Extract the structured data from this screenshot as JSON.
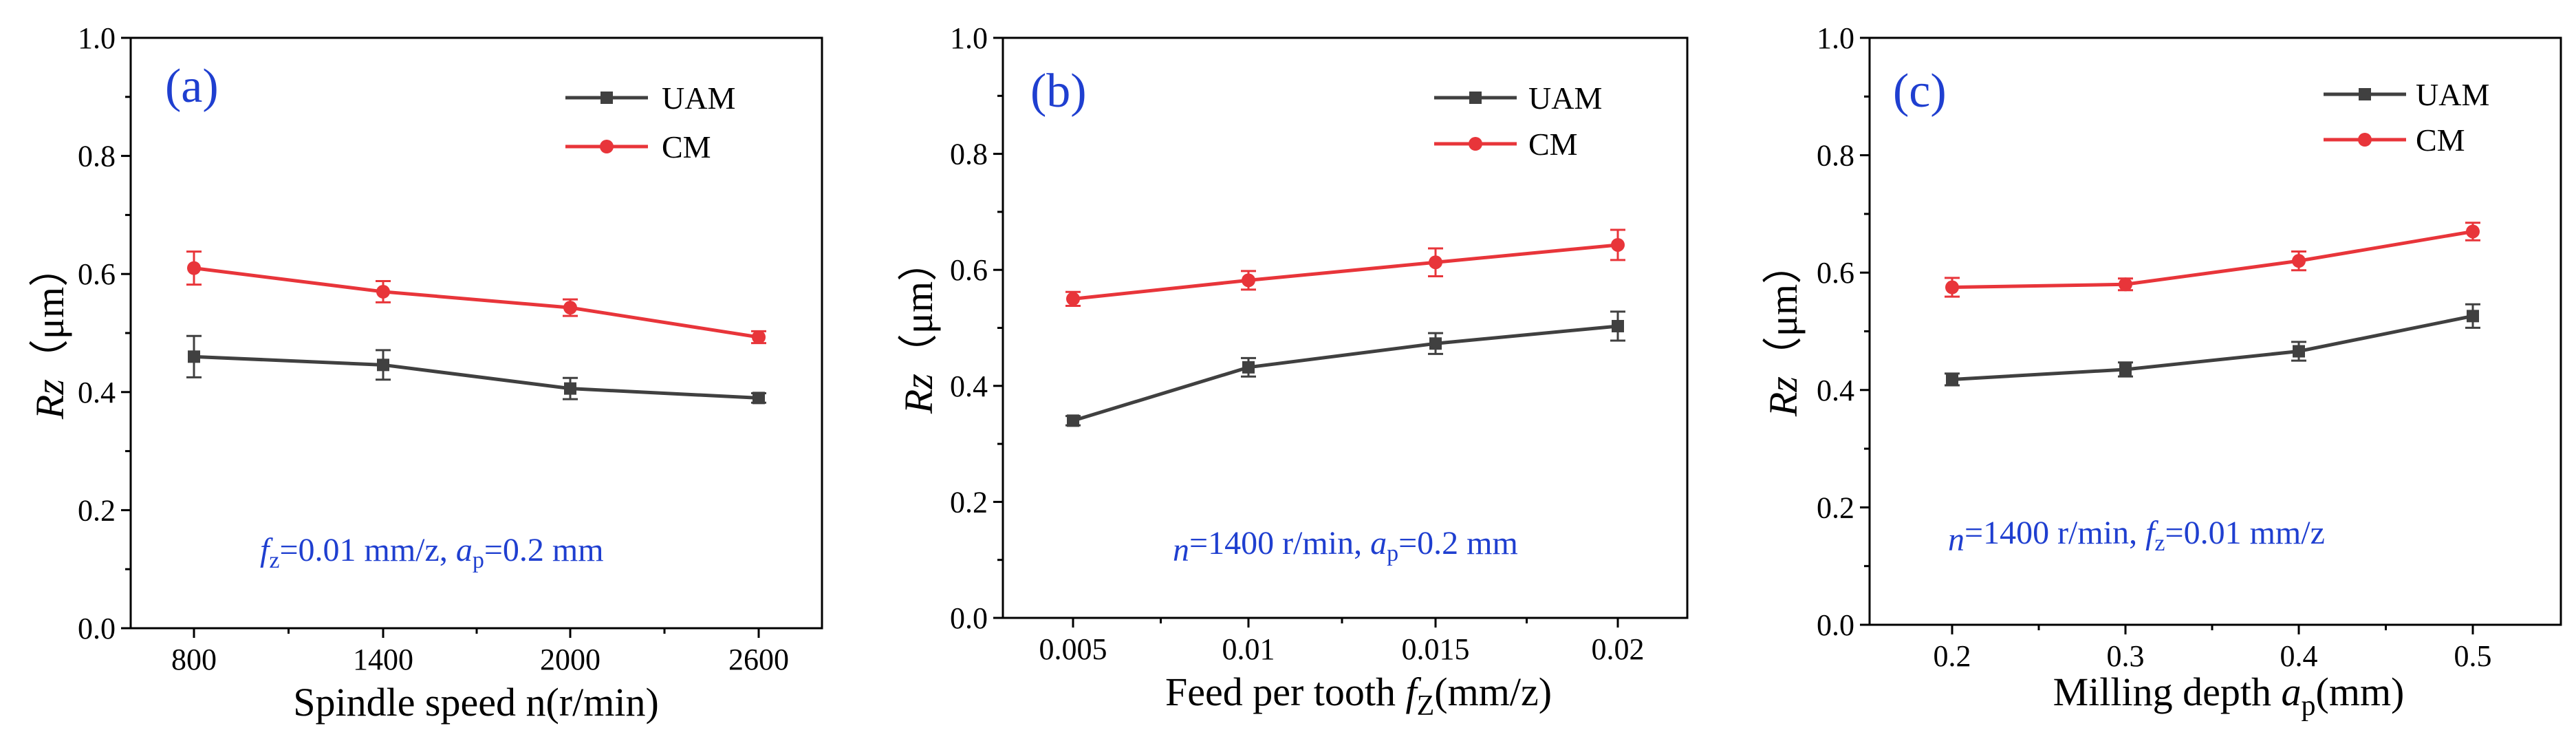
{
  "colors": {
    "uam": "#404040",
    "cm": "#e8353a",
    "annotation": "#1f3fd0"
  },
  "chart_data": [
    {
      "type": "line",
      "panel_label": "(a)",
      "xlabel": "Spindle speed n(r/min)",
      "ylabel_italic": "Rz",
      "ylabel_unit": "（μm）",
      "categories": [
        "800",
        "1400",
        "2000",
        "2600"
      ],
      "ylim": [
        0,
        1.0
      ],
      "yticks": [
        "0.0",
        "0.2",
        "0.4",
        "0.6",
        "0.8",
        "1.0"
      ],
      "series": [
        {
          "name": "UAM",
          "marker": "square",
          "values": [
            0.46,
            0.446,
            0.406,
            0.39
          ],
          "errors": [
            0.035,
            0.025,
            0.018,
            0.008
          ]
        },
        {
          "name": "CM",
          "marker": "circle",
          "values": [
            0.61,
            0.57,
            0.543,
            0.493
          ],
          "errors": [
            0.028,
            0.018,
            0.014,
            0.01
          ]
        }
      ],
      "condition": {
        "v1": "f",
        "s1": "z",
        "t1": "=0.01 mm/z, ",
        "v2": "a",
        "s2": "p",
        "t2": "=0.2 mm"
      }
    },
    {
      "type": "line",
      "panel_label": "(b)",
      "xlabel_pre": "Feed per tooth ",
      "xlabel_var": "f",
      "xlabel_sub": "Z",
      "xlabel_post": "(mm/z)",
      "ylabel_italic": "Rz",
      "ylabel_unit": "（μm）",
      "categories": [
        "0.005",
        "0.01",
        "0.015",
        "0.02"
      ],
      "ylim": [
        0,
        1.0
      ],
      "yticks": [
        "0.0",
        "0.2",
        "0.4",
        "0.6",
        "0.8",
        "1.0"
      ],
      "series": [
        {
          "name": "UAM",
          "marker": "square",
          "values": [
            0.34,
            0.432,
            0.473,
            0.503
          ],
          "errors": [
            0.008,
            0.016,
            0.018,
            0.025
          ]
        },
        {
          "name": "CM",
          "marker": "circle",
          "values": [
            0.55,
            0.582,
            0.613,
            0.643
          ],
          "errors": [
            0.012,
            0.016,
            0.024,
            0.026
          ]
        }
      ],
      "condition": {
        "v1": "n",
        "s1": "",
        "t1": "=1400 r/min, ",
        "v2": "a",
        "s2": "p",
        "t2": "=0.2 mm"
      }
    },
    {
      "type": "line",
      "panel_label": "(c)",
      "xlabel_pre": "Milling depth ",
      "xlabel_var": "a",
      "xlabel_sub": "p",
      "xlabel_post": "(mm)",
      "ylabel_italic": "Rz",
      "ylabel_unit": "（μm）",
      "categories": [
        "0.2",
        "0.3",
        "0.4",
        "0.5"
      ],
      "ylim": [
        0,
        1.0
      ],
      "yticks": [
        "0.0",
        "0.2",
        "0.4",
        "0.6",
        "0.8",
        "1.0"
      ],
      "series": [
        {
          "name": "UAM",
          "marker": "square",
          "values": [
            0.418,
            0.435,
            0.466,
            0.526
          ],
          "errors": [
            0.01,
            0.012,
            0.016,
            0.02
          ]
        },
        {
          "name": "CM",
          "marker": "circle",
          "values": [
            0.575,
            0.58,
            0.62,
            0.67
          ],
          "errors": [
            0.016,
            0.01,
            0.016,
            0.015
          ]
        }
      ],
      "condition": {
        "v1": "n",
        "s1": "",
        "t1": "=1400 r/min, ",
        "v2": "f",
        "s2": "z",
        "t2": "=0.01 mm/z"
      }
    }
  ]
}
